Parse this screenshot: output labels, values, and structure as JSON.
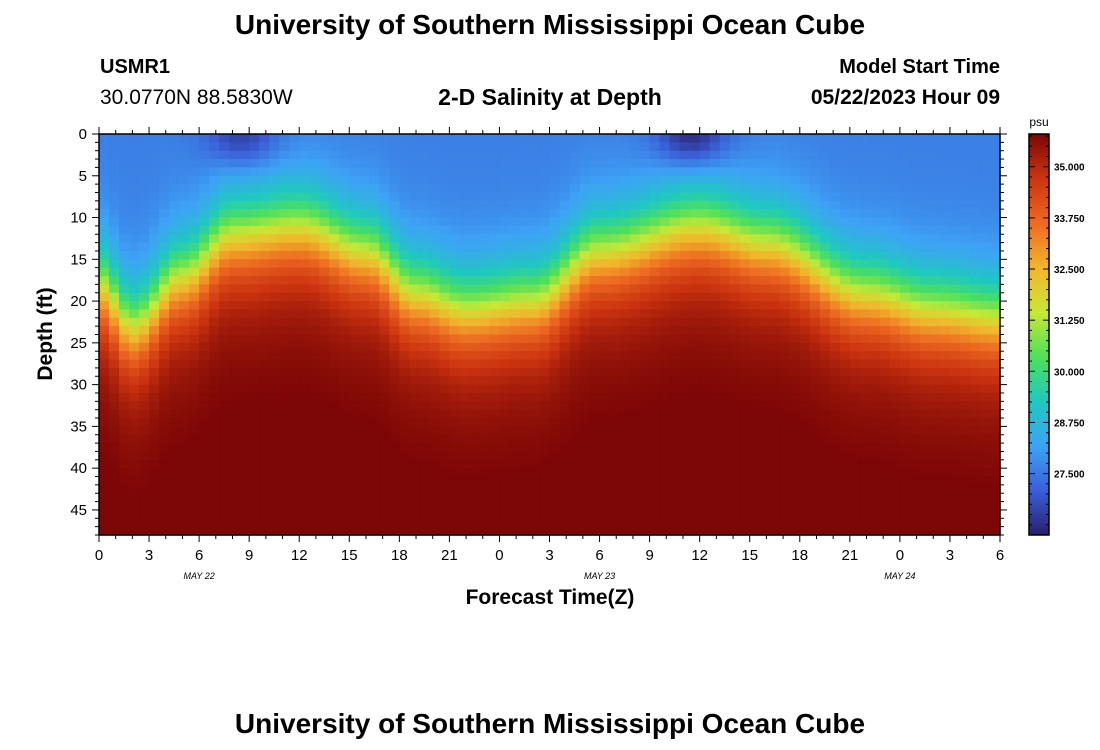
{
  "header": {
    "title": "University of Southern Mississippi Ocean Cube",
    "station_id": "USMR1",
    "coordinates": "30.0770N  88.5830W",
    "subtitle": "2-D Salinity at Depth",
    "start_label": "Model Start Time",
    "start_value": "05/22/2023 Hour 09"
  },
  "footer": {
    "title": "University of Southern Mississippi Ocean Cube"
  },
  "chart_data": {
    "type": "heatmap",
    "title": "2-D Salinity at Depth",
    "xlabel": "Forecast Time(Z)",
    "ylabel": "Depth (ft)",
    "x_ticks": [
      "0",
      "3",
      "6",
      "9",
      "12",
      "15",
      "18",
      "21",
      "0",
      "3",
      "6",
      "9",
      "12",
      "15",
      "18",
      "21",
      "0",
      "3",
      "6"
    ],
    "date_labels": [
      {
        "label": "MAY 22",
        "tick_index": 2
      },
      {
        "label": "MAY 23",
        "tick_index": 10
      },
      {
        "label": "MAY 24",
        "tick_index": 16
      }
    ],
    "y_ticks": [
      0,
      5,
      10,
      15,
      20,
      25,
      30,
      35,
      40,
      45
    ],
    "ylim": [
      0,
      48
    ],
    "y_inverted": true,
    "x_range_hours": [
      0,
      54
    ],
    "colorbar": {
      "unit": "psu",
      "range": [
        26.0,
        35.8
      ],
      "tick_labels": [
        "35.000",
        "33.750",
        "32.500",
        "31.250",
        "30.000",
        "28.750",
        "27.500"
      ],
      "tick_values": [
        35.0,
        33.75,
        32.5,
        31.25,
        30.0,
        28.75,
        27.5
      ],
      "colors": [
        "#2a1f6e",
        "#3a5fd8",
        "#3da3f5",
        "#1ec9c0",
        "#4de05a",
        "#c8e835",
        "#f2b52c",
        "#ee6a22",
        "#cc3410",
        "#7d0606"
      ]
    },
    "salinity_model": {
      "surface_value": 27.6,
      "deep_value": 35.5,
      "halocline_depth_ft": [
        {
          "hour": 0,
          "depth": 18
        },
        {
          "hour": 2,
          "depth": 23
        },
        {
          "hour": 5,
          "depth": 17
        },
        {
          "hour": 8,
          "depth": 12
        },
        {
          "hour": 12,
          "depth": 11
        },
        {
          "hour": 16,
          "depth": 14
        },
        {
          "hour": 19,
          "depth": 19
        },
        {
          "hour": 22,
          "depth": 21
        },
        {
          "hour": 26,
          "depth": 20
        },
        {
          "hour": 30,
          "depth": 14
        },
        {
          "hour": 36,
          "depth": 11
        },
        {
          "hour": 40,
          "depth": 13
        },
        {
          "hour": 46,
          "depth": 19
        },
        {
          "hour": 50,
          "depth": 21
        },
        {
          "hour": 54,
          "depth": 22
        }
      ],
      "low_salinity_spots": [
        {
          "hour": 8.5,
          "depth": 0,
          "value": 26.4
        },
        {
          "hour": 35.5,
          "depth": 0,
          "value": 26.0
        }
      ]
    }
  }
}
